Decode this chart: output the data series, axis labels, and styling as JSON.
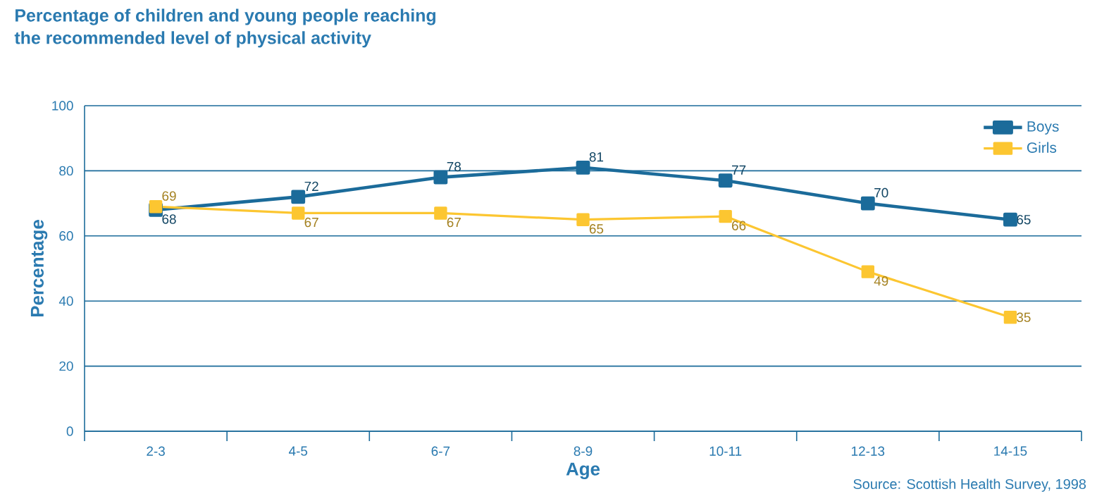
{
  "chart_data": {
    "type": "line",
    "title": "Percentage of children and young people reaching\nthe recommended level of physical activity",
    "xlabel": "Age",
    "ylabel": "Percentage",
    "categories": [
      "2-3",
      "4-5",
      "6-7",
      "8-9",
      "10-11",
      "12-13",
      "14-15"
    ],
    "series": [
      {
        "name": "Boys",
        "color": "#1b6b9a",
        "values": [
          68,
          72,
          78,
          81,
          77,
          70,
          65
        ]
      },
      {
        "name": "Girls",
        "color": "#fcc631",
        "values": [
          69,
          67,
          67,
          65,
          66,
          49,
          35
        ]
      }
    ],
    "ylim": [
      0,
      100
    ],
    "yticks": [
      0,
      20,
      40,
      60,
      80,
      100
    ],
    "grid": "y",
    "legend": "top right",
    "marker": "square",
    "data_labels": true,
    "annotations": [
      "Source: Scottish Health Survey, 1998"
    ]
  }
}
